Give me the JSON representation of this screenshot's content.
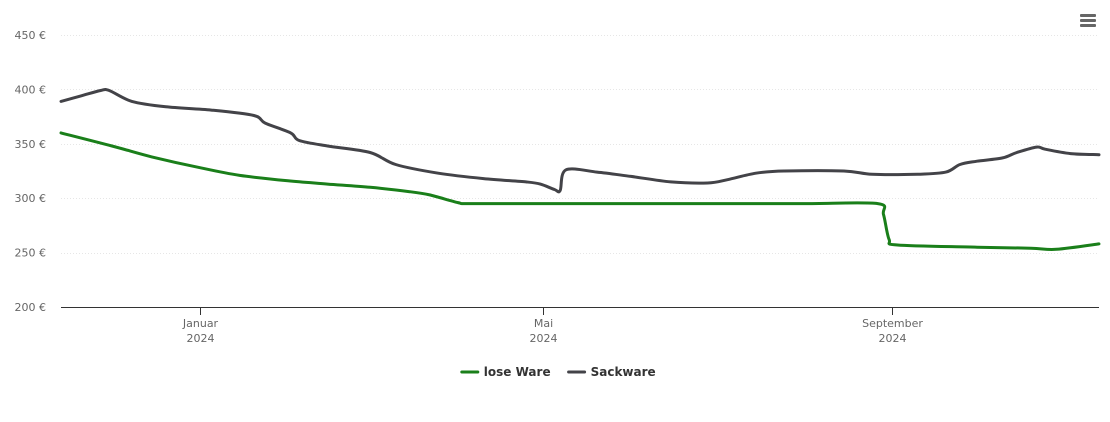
{
  "chart_data": {
    "type": "line",
    "title": "",
    "xlabel": "",
    "ylabel": "",
    "ylim": [
      200,
      450
    ],
    "yticks": [
      200,
      250,
      300,
      350,
      400,
      450
    ],
    "ytick_labels": [
      "200 €",
      "250 €",
      "300 €",
      "350 €",
      "400 €",
      "450 €"
    ],
    "xlim": [
      "2023-11-13",
      "2024-11-13"
    ],
    "xticks": [
      {
        "date": "2024-01-01",
        "line1": "Januar",
        "line2": "2024"
      },
      {
        "date": "2024-05-01",
        "line1": "Mai",
        "line2": "2024"
      },
      {
        "date": "2024-09-01",
        "line1": "September",
        "line2": "2024"
      }
    ],
    "grid": "horizontal",
    "legend_position": "bottom-center",
    "series": [
      {
        "name": "lose Ware",
        "color": "#1a7f1a",
        "points": [
          [
            "2023-11-13",
            360
          ],
          [
            "2023-12-01",
            348
          ],
          [
            "2023-12-15",
            338
          ],
          [
            "2024-01-01",
            328
          ],
          [
            "2024-01-15",
            321
          ],
          [
            "2024-02-01",
            316
          ],
          [
            "2024-02-15",
            313
          ],
          [
            "2024-03-01",
            310
          ],
          [
            "2024-03-15",
            306
          ],
          [
            "2024-03-22",
            303
          ],
          [
            "2024-04-01",
            296
          ],
          [
            "2024-04-05",
            295
          ],
          [
            "2024-05-01",
            295
          ],
          [
            "2024-06-01",
            295
          ],
          [
            "2024-07-01",
            295
          ],
          [
            "2024-08-01",
            295
          ],
          [
            "2024-08-27",
            295
          ],
          [
            "2024-08-29",
            285
          ],
          [
            "2024-08-31",
            262
          ],
          [
            "2024-09-03",
            257
          ],
          [
            "2024-10-01",
            255
          ],
          [
            "2024-10-20",
            254
          ],
          [
            "2024-10-29",
            253
          ],
          [
            "2024-11-13",
            258
          ]
        ]
      },
      {
        "name": "Sackware",
        "color": "#434348",
        "points": [
          [
            "2023-11-13",
            389
          ],
          [
            "2023-11-20",
            394
          ],
          [
            "2023-11-27",
            399
          ],
          [
            "2023-11-30",
            399
          ],
          [
            "2023-12-08",
            389
          ],
          [
            "2023-12-20",
            384
          ],
          [
            "2024-01-05",
            381
          ],
          [
            "2024-01-20",
            376
          ],
          [
            "2024-01-24",
            369
          ],
          [
            "2024-02-02",
            360
          ],
          [
            "2024-02-05",
            353
          ],
          [
            "2024-02-15",
            348
          ],
          [
            "2024-03-01",
            342
          ],
          [
            "2024-03-10",
            331
          ],
          [
            "2024-03-25",
            323
          ],
          [
            "2024-04-10",
            318
          ],
          [
            "2024-04-25",
            315
          ],
          [
            "2024-04-30",
            313
          ],
          [
            "2024-05-05",
            308
          ],
          [
            "2024-05-07",
            307
          ],
          [
            "2024-05-09",
            326
          ],
          [
            "2024-05-20",
            324
          ],
          [
            "2024-06-01",
            320
          ],
          [
            "2024-06-15",
            315
          ],
          [
            "2024-06-28",
            314
          ],
          [
            "2024-07-05",
            317
          ],
          [
            "2024-07-15",
            323
          ],
          [
            "2024-07-25",
            325
          ],
          [
            "2024-08-15",
            325
          ],
          [
            "2024-08-25",
            322
          ],
          [
            "2024-09-10",
            322
          ],
          [
            "2024-09-20",
            324
          ],
          [
            "2024-09-25",
            331
          ],
          [
            "2024-10-01",
            334
          ],
          [
            "2024-10-10",
            337
          ],
          [
            "2024-10-15",
            342
          ],
          [
            "2024-10-22",
            347
          ],
          [
            "2024-10-25",
            345
          ],
          [
            "2024-11-03",
            341
          ],
          [
            "2024-11-13",
            340
          ]
        ]
      }
    ]
  }
}
